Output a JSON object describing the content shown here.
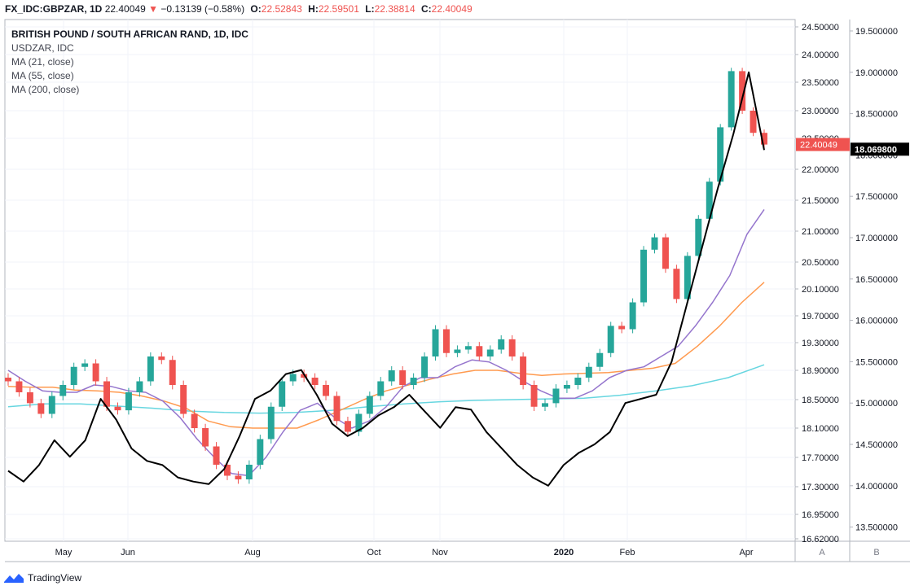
{
  "header": {
    "symbol": "FX_IDC:GBPZAR, 1D",
    "last": "22.40049",
    "change_arrow": "▼",
    "change": "−0.13139 (−0.58%)",
    "open_label": "O:",
    "open": "22.52843",
    "high_label": "H:",
    "high": "22.59501",
    "low_label": "L:",
    "low": "22.38814",
    "close_label": "C:",
    "close": "22.40049"
  },
  "legend": {
    "title": "BRITISH POUND / SOUTH AFRICAN RAND, 1D, IDC",
    "items": [
      "USDZAR, IDC",
      "MA (21, close)",
      "MA (55, close)",
      "MA (200, close)"
    ]
  },
  "footer": {
    "brand": "TradingView",
    "logo_icon": "tradingview-logo-icon"
  },
  "colors": {
    "up": "#26a69a",
    "down": "#ef5350",
    "overlay": "#000000",
    "ma21": "#9575cd",
    "ma55": "#ff9a4f",
    "ma200": "#67d6e0",
    "last_price_label": "#ef5350",
    "overlay_price_label": "#000000"
  },
  "chart_data": {
    "type": "line",
    "x_labels": [
      "May",
      "Jun",
      "Aug",
      "Oct",
      "Nov",
      "2020",
      "Feb",
      "Apr"
    ],
    "scale_a": {
      "name": "A",
      "ticks": [
        "24.50000",
        "24.00000",
        "23.50000",
        "23.00000",
        "22.50000",
        "22.00000",
        "21.50000",
        "21.00000",
        "20.50000",
        "20.10000",
        "19.70000",
        "19.30000",
        "18.90000",
        "18.50000",
        "18.10000",
        "17.70000",
        "17.30000",
        "16.95000",
        "16.62000"
      ],
      "last_label": "22.40049"
    },
    "scale_b": {
      "name": "B",
      "ticks": [
        "19.500000",
        "19.000000",
        "18.500000",
        "18.000000",
        "17.500000",
        "17.000000",
        "16.500000",
        "16.000000",
        "15.500000",
        "15.000000",
        "14.500000",
        "14.000000",
        "13.500000"
      ],
      "last_label": "18.069800"
    },
    "series": [
      {
        "name": "GBPZAR candles",
        "kind": "candles",
        "close": [
          18.75,
          18.6,
          18.45,
          18.3,
          18.55,
          18.7,
          18.95,
          19.0,
          18.75,
          18.4,
          18.35,
          18.6,
          18.75,
          19.1,
          19.05,
          18.7,
          18.3,
          18.1,
          17.85,
          17.6,
          17.45,
          17.4,
          17.6,
          17.95,
          18.4,
          18.75,
          18.85,
          18.8,
          18.7,
          18.55,
          18.2,
          18.05,
          18.3,
          18.55,
          18.75,
          18.9,
          18.7,
          18.8,
          19.1,
          19.5,
          19.15,
          19.2,
          19.25,
          19.1,
          19.2,
          19.35,
          19.1,
          18.7,
          18.4,
          18.45,
          18.65,
          18.7,
          18.8,
          18.95,
          19.15,
          19.55,
          19.5,
          19.9,
          20.7,
          20.9,
          20.4,
          19.95,
          20.6,
          21.2,
          21.8,
          22.7,
          23.7,
          23.0,
          22.6,
          22.4
        ]
      },
      {
        "name": "USDZAR",
        "kind": "line",
        "values": [
          14.18,
          14.05,
          14.25,
          14.55,
          14.35,
          14.55,
          15.05,
          14.8,
          14.45,
          14.3,
          14.25,
          14.1,
          14.05,
          14.02,
          14.2,
          14.6,
          15.05,
          15.15,
          15.35,
          15.4,
          15.1,
          14.75,
          14.6,
          14.7,
          14.85,
          14.95,
          15.1,
          14.9,
          14.7,
          14.95,
          14.92,
          14.65,
          14.45,
          14.25,
          14.1,
          14.0,
          14.25,
          14.4,
          14.5,
          14.65,
          15.0,
          15.05,
          15.1,
          15.5,
          16.2,
          16.9,
          17.6,
          18.25,
          19.0,
          18.06
        ]
      },
      {
        "name": "MA (21, close)",
        "kind": "line",
        "values": [
          18.9,
          18.75,
          18.62,
          18.6,
          18.6,
          18.7,
          18.68,
          18.62,
          18.6,
          18.48,
          18.25,
          17.95,
          17.7,
          17.48,
          17.45,
          17.7,
          18.05,
          18.35,
          18.45,
          18.25,
          18.1,
          18.2,
          18.4,
          18.68,
          18.8,
          18.8,
          18.95,
          19.05,
          19.02,
          18.9,
          18.75,
          18.62,
          18.52,
          18.52,
          18.62,
          18.8,
          18.9,
          18.95,
          19.1,
          19.25,
          19.55,
          19.9,
          20.3,
          20.95,
          21.35
        ]
      },
      {
        "name": "MA (55, close)",
        "kind": "line",
        "values": [
          18.68,
          18.67,
          18.67,
          18.63,
          18.62,
          18.6,
          18.55,
          18.48,
          18.38,
          18.2,
          18.12,
          18.1,
          18.1,
          18.1,
          18.22,
          18.36,
          18.5,
          18.62,
          18.7,
          18.78,
          18.85,
          18.9,
          18.9,
          18.86,
          18.83,
          18.85,
          18.86,
          18.87,
          18.9,
          18.93,
          19.0,
          19.25,
          19.55,
          19.9,
          20.2
        ]
      },
      {
        "name": "MA (200, close)",
        "kind": "line",
        "values": [
          18.4,
          18.44,
          18.44,
          18.41,
          18.38,
          18.34,
          18.32,
          18.31,
          18.32,
          18.35,
          18.4,
          18.44,
          18.47,
          18.49,
          18.5,
          18.51,
          18.52,
          18.56,
          18.62,
          18.69,
          18.8,
          18.98
        ]
      }
    ],
    "grid": true,
    "legend_position": "top-left"
  }
}
